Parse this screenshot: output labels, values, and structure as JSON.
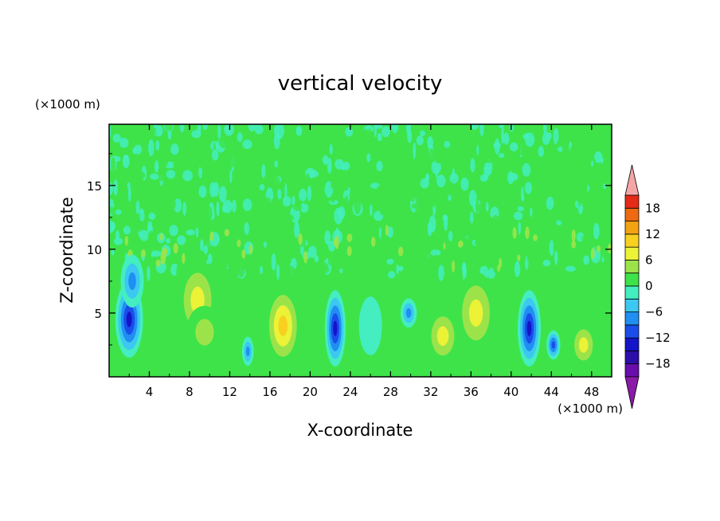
{
  "chart_data": {
    "type": "heatmap",
    "title": "vertical velocity",
    "xlabel": "X-coordinate",
    "ylabel": "Z-coordinate",
    "x_unit": "(×1000 m)",
    "y_unit": "(×1000 m)",
    "xlim": [
      0,
      50
    ],
    "ylim": [
      0,
      19.8
    ],
    "x_ticks": [
      4,
      8,
      12,
      16,
      20,
      24,
      28,
      32,
      36,
      40,
      44,
      48
    ],
    "y_ticks": [
      5,
      10,
      15
    ],
    "colorbar": {
      "levels": [
        -21,
        -18,
        -15,
        -12,
        -9,
        -6,
        -3,
        0,
        3,
        6,
        9,
        12,
        15,
        18,
        21
      ],
      "tick_values": [
        -18,
        -12,
        -6,
        0,
        6,
        12,
        18
      ],
      "tick_labels": [
        "−18",
        "−12",
        "−6",
        "0",
        "6",
        "12",
        "18"
      ],
      "colors": [
        "#6a0dad",
        "#2b0fa8",
        "#1414c8",
        "#1a4dea",
        "#1f8ff2",
        "#3cc8f0",
        "#44eec0",
        "#3ee34a",
        "#9ce34a",
        "#ecf236",
        "#f8d020",
        "#f3a212",
        "#ee6a10",
        "#e62a18"
      ],
      "under_color": "#8a1aa8",
      "over_color": "#f4a6a6",
      "extend": "both"
    },
    "cells": [
      {
        "x": 2.0,
        "z": 4.5,
        "value": -14,
        "sx": 1.2,
        "sz": 2.6
      },
      {
        "x": 2.3,
        "z": 7.5,
        "value": -9,
        "sx": 1.0,
        "sz": 1.8
      },
      {
        "x": 8.8,
        "z": 6.0,
        "value": 8,
        "sx": 1.8,
        "sz": 2.8
      },
      {
        "x": 9.5,
        "z": 3.5,
        "value": 5,
        "sx": 1.6,
        "sz": 1.8
      },
      {
        "x": 13.8,
        "z": 2.0,
        "value": -8,
        "sx": 0.5,
        "sz": 1.0
      },
      {
        "x": 17.3,
        "z": 4.0,
        "value": 13,
        "sx": 1.6,
        "sz": 2.8
      },
      {
        "x": 22.5,
        "z": 3.8,
        "value": -15,
        "sx": 0.9,
        "sz": 2.6
      },
      {
        "x": 26.0,
        "z": 4.0,
        "value": -3,
        "sx": 1.0,
        "sz": 2.0
      },
      {
        "x": 29.8,
        "z": 5.0,
        "value": -10,
        "sx": 0.7,
        "sz": 1.0
      },
      {
        "x": 33.2,
        "z": 3.2,
        "value": 10,
        "sx": 1.5,
        "sz": 2.0
      },
      {
        "x": 36.5,
        "z": 5.0,
        "value": 8,
        "sx": 1.8,
        "sz": 2.8
      },
      {
        "x": 41.8,
        "z": 3.8,
        "value": -15,
        "sx": 1.0,
        "sz": 2.6
      },
      {
        "x": 44.2,
        "z": 2.5,
        "value": -12,
        "sx": 0.6,
        "sz": 1.0
      },
      {
        "x": 47.2,
        "z": 2.5,
        "value": 9,
        "sx": 1.2,
        "sz": 1.6
      }
    ]
  }
}
